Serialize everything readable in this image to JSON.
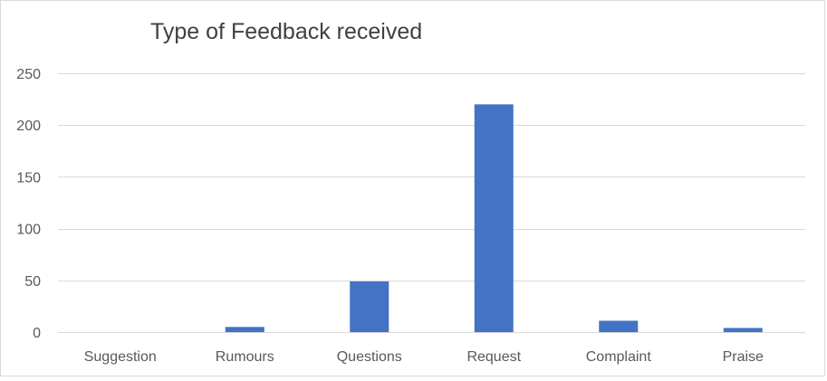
{
  "chart_data": {
    "type": "bar",
    "title": "Type of Feedback received",
    "categories": [
      "Suggestion",
      "Rumours",
      "Questions",
      "Request",
      "Complaint",
      "Praise"
    ],
    "values": [
      0,
      5,
      49,
      220,
      11,
      4
    ],
    "ylim": [
      0,
      250
    ],
    "yticks": [
      0,
      50,
      100,
      150,
      200,
      250
    ],
    "grid": true,
    "legend": "none",
    "bar_color": "#4472c4",
    "grid_color": "#d9d9d9"
  }
}
